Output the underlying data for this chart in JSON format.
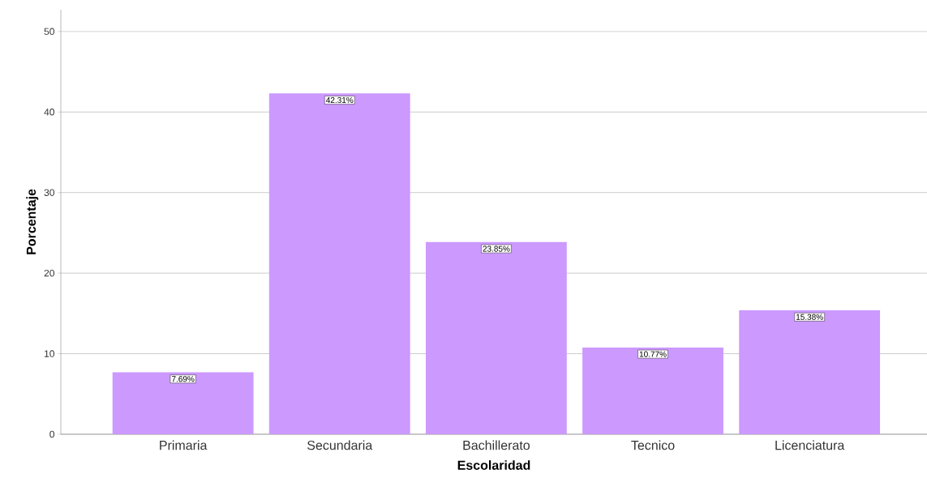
{
  "chart_data": {
    "type": "bar",
    "xlabel": "Escolaridad",
    "ylabel": "Porcentaje",
    "categories": [
      "Primaria",
      "Secundaria",
      "Bachillerato",
      "Tecnico",
      "Licenciatura"
    ],
    "values": [
      7.69,
      42.31,
      23.85,
      10.77,
      15.38
    ],
    "value_labels": [
      "7.69%",
      "42.31%",
      "23.85%",
      "10.77%",
      "15.38%"
    ],
    "color": "#cc99ff",
    "ylim": [
      0,
      52.7
    ],
    "yticks": [
      0,
      10,
      20,
      30,
      40,
      50
    ],
    "grid": "y"
  }
}
